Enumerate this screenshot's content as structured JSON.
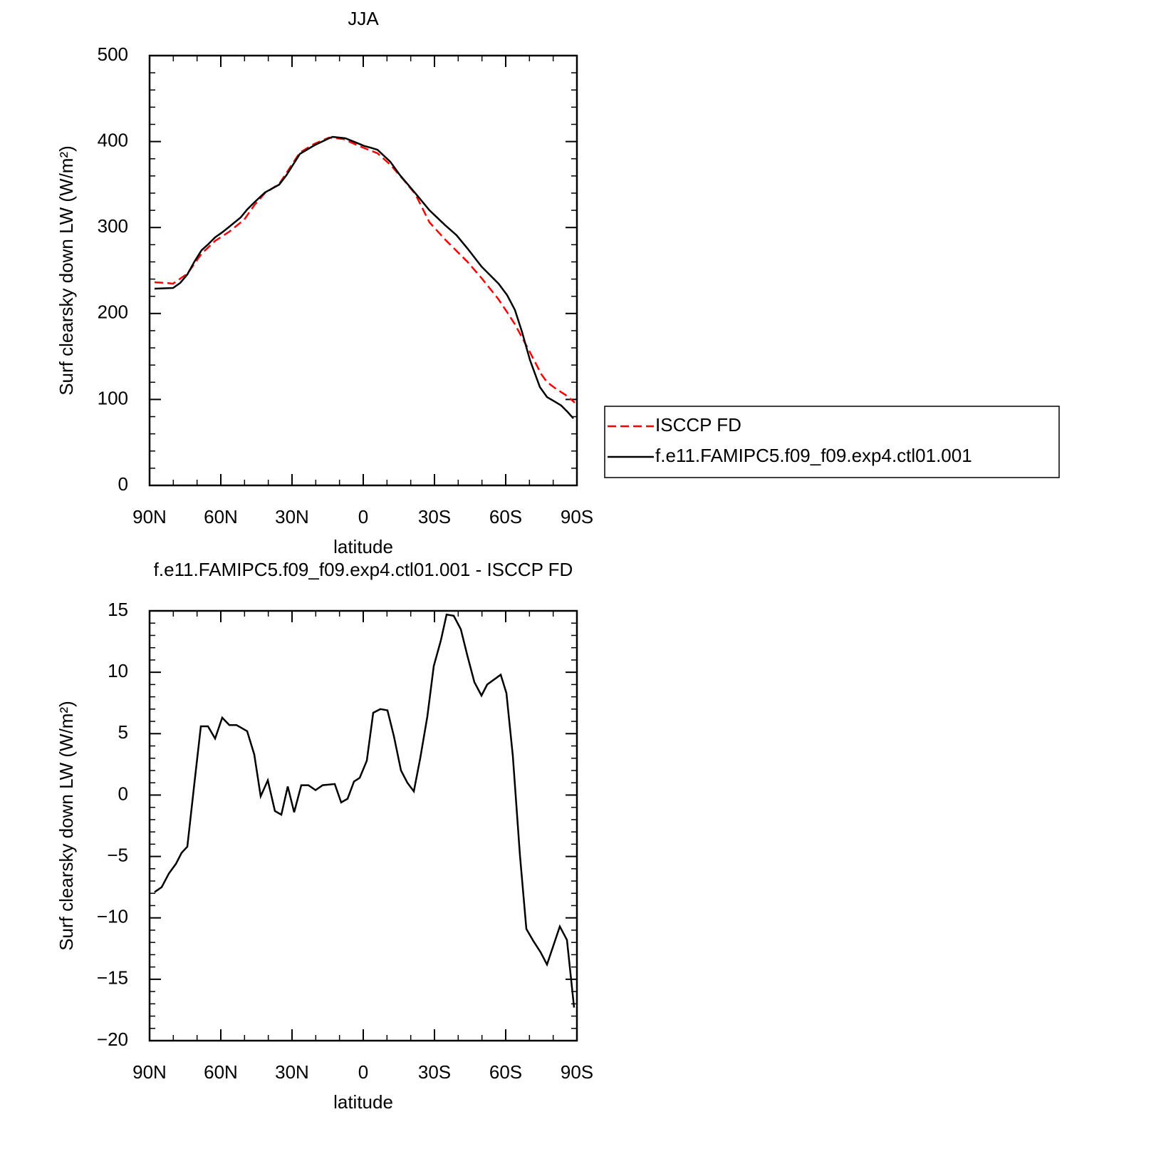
{
  "chart_data": [
    {
      "type": "line",
      "title": "JJA",
      "xlabel": "latitude",
      "ylabel": "Surf clearsky down LW (W/m²)",
      "xlim": [
        90,
        -90
      ],
      "xticks": [
        {
          "value": 90,
          "label": "90N"
        },
        {
          "value": 60,
          "label": "60N"
        },
        {
          "value": 30,
          "label": "30N"
        },
        0,
        {
          "value": -30,
          "label": "30S"
        },
        {
          "value": -60,
          "label": "60S"
        },
        {
          "value": -90,
          "label": "90S"
        }
      ],
      "ylim": [
        0,
        500
      ],
      "yticks": [
        0,
        100,
        200,
        300,
        400,
        500
      ],
      "legend": "right",
      "series": [
        {
          "name": "ISCCP FD",
          "color": "#ff0000",
          "dashed": true,
          "x": [
            87.9,
            83.1,
            80.1,
            74.1,
            68.1,
            62.4,
            56.4,
            50.1,
            45.9,
            41.4,
            35.4,
            26.7,
            20.7,
            14.4,
            8.4,
            3,
            -0.6,
            -6,
            -11.4,
            -17.4,
            -21.9,
            -27.9,
            -34.5,
            -43.8,
            -49.8,
            -57,
            -60.6,
            -63.9,
            -70.2,
            -75,
            -77.4,
            -81,
            -86.1,
            -89.1
          ],
          "values": [
            236.3,
            235.5,
            234.7,
            246.3,
            269.5,
            284.4,
            295.2,
            309.3,
            325.9,
            340,
            350.7,
            387.2,
            397.2,
            404.6,
            403,
            396.4,
            392.2,
            386.4,
            373.1,
            354.1,
            339.1,
            306,
            286,
            260.4,
            241.3,
            216.4,
            201.5,
            187.4,
            155,
            129.4,
            120.2,
            112.8,
            103.6,
            96.2
          ]
        },
        {
          "name": "f.e11.FAMIPC5.f09_f09.exp4.ctl01.001",
          "color": "#000000",
          "dashed": false,
          "x": [
            87.9,
            80.1,
            77.1,
            74.1,
            71.1,
            68.1,
            65.4,
            62.4,
            59.4,
            56.4,
            51.6,
            48.9,
            45.9,
            41.4,
            35.4,
            32.4,
            26.7,
            20.7,
            14.4,
            12.9,
            7.5,
            3,
            -0.6,
            -3,
            -6,
            -11.4,
            -15.3,
            -21.9,
            -27.9,
            -34.5,
            -39.3,
            -43.8,
            -49.8,
            -57,
            -60.6,
            -63.9,
            -66.9,
            -70.2,
            -74.4,
            -77.4,
            -81,
            -83.4,
            -86.1,
            -88.5
          ],
          "values": [
            228.9,
            229.7,
            235.5,
            245.4,
            260.4,
            273.6,
            280.3,
            288.6,
            294.4,
            301,
            311.8,
            320.9,
            329.2,
            340.8,
            349.9,
            360.7,
            385.6,
            395.5,
            403.8,
            405.5,
            403.8,
            398.8,
            394.7,
            393,
            390.5,
            376.5,
            361.5,
            340,
            320,
            302.7,
            291,
            276,
            254.6,
            234.7,
            221.4,
            204,
            178.3,
            146,
            114.4,
            102.8,
            97,
            92.9,
            85.4,
            77.9
          ]
        }
      ]
    },
    {
      "type": "line",
      "title": "f.e11.FAMIPC5.f09_f09.exp4.ctl01.001 - ISCCP FD",
      "xlabel": "latitude",
      "ylabel": "Surf clearsky down LW (W/m²)",
      "xlim": [
        90,
        -90
      ],
      "xticks": [
        {
          "value": 90,
          "label": "90N"
        },
        {
          "value": 60,
          "label": "60N"
        },
        {
          "value": 30,
          "label": "30N"
        },
        0,
        {
          "value": -30,
          "label": "30S"
        },
        {
          "value": -60,
          "label": "60S"
        },
        {
          "value": -90,
          "label": "90S"
        }
      ],
      "ylim": [
        -20,
        15
      ],
      "yticks": [
        {
          "value": -20,
          "label": "−20"
        },
        {
          "value": -15,
          "label": "−15"
        },
        {
          "value": -10,
          "label": "−10"
        },
        {
          "value": -5,
          "label": "−5"
        },
        0,
        5,
        10,
        15
      ],
      "series": [
        {
          "color": "#000000",
          "dashed": false,
          "x": [
            87.9,
            84.9,
            81.9,
            78.9,
            76.5,
            74.1,
            71.1,
            68.4,
            65.4,
            62.4,
            59.4,
            56.4,
            53.4,
            48.9,
            45.9,
            43.2,
            40.2,
            37.2,
            34.5,
            31.8,
            29.1,
            26.1,
            23.1,
            20.1,
            17.1,
            12,
            9.3,
            6.6,
            3.9,
            1.5,
            -1.5,
            -4.2,
            -7.2,
            -10.2,
            -12.9,
            -15.9,
            -18.6,
            -21.3,
            -24,
            -27,
            -29.7,
            -32.7,
            -35.1,
            -38.1,
            -41.1,
            -43.8,
            -46.8,
            -49.8,
            -52.2,
            -57.9,
            -60.3,
            -63,
            -66,
            -68.7,
            -71.7,
            -74.7,
            -77.4,
            -82.8,
            -85.8,
            -88.8
          ],
          "values": [
            -7.9,
            -7.5,
            -6.4,
            -5.6,
            -4.7,
            -4.2,
            1.0,
            5.6,
            5.6,
            4.6,
            6.3,
            5.7,
            5.7,
            5.2,
            3.3,
            -0.1,
            1.2,
            -1.3,
            -1.6,
            0.7,
            -1.4,
            0.8,
            0.8,
            0.4,
            0.8,
            0.9,
            -0.6,
            -0.3,
            1.1,
            1.4,
            2.8,
            6.7,
            7.0,
            6.9,
            4.8,
            2.0,
            1.0,
            0.3,
            3.0,
            6.4,
            10.5,
            12.6,
            14.7,
            14.6,
            13.5,
            11.4,
            9.2,
            8.1,
            9.0,
            9.8,
            8.3,
            3.2,
            -4.9,
            -10.9,
            -11.9,
            -12.8,
            -13.8,
            -10.7,
            -11.8,
            -17.3
          ]
        }
      ]
    }
  ]
}
